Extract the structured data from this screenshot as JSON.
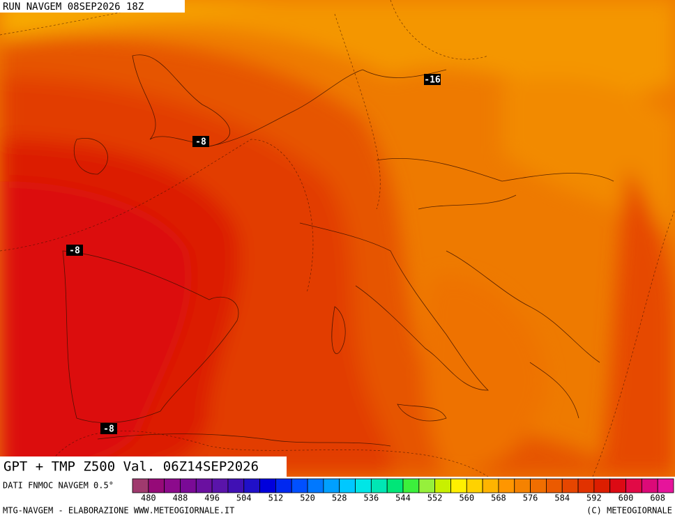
{
  "header": {
    "run": "RUN NAVGEM 08SEP2026 18Z"
  },
  "contour_labels": [
    "-16",
    "-8",
    "-8",
    "-8"
  ],
  "title": "GPT + TMP Z500 Val. 06Z14SEP2026",
  "source": "DATI FNMOC NAVGEM 0.5°",
  "colorbar": {
    "colors": [
      "#a03a6e",
      "#960a78",
      "#8c0a8c",
      "#7a0a96",
      "#6a10a0",
      "#5a14aa",
      "#4010b4",
      "#2010c8",
      "#0000dc",
      "#0028f0",
      "#0050ff",
      "#0078ff",
      "#00a0ff",
      "#00c8ff",
      "#00e6e6",
      "#00e6b4",
      "#00e678",
      "#3cf03c",
      "#96f03c",
      "#c8f000",
      "#fff000",
      "#ffd200",
      "#ffb400",
      "#ff9600",
      "#f58200",
      "#f06e00",
      "#eb5a00",
      "#e64600",
      "#e13200",
      "#dc1e00",
      "#dc0a14",
      "#e10a46",
      "#dc0a78",
      "#e6149b"
    ],
    "ticks": [
      480,
      488,
      496,
      504,
      512,
      520,
      528,
      536,
      544,
      552,
      560,
      568,
      576,
      584,
      592,
      600,
      608
    ]
  },
  "footer": {
    "left": "MTG-NAVGEM - ELABORAZIONE WWW.METEOGIORNALE.IT",
    "right": "(C) METEOGIORNALE"
  }
}
